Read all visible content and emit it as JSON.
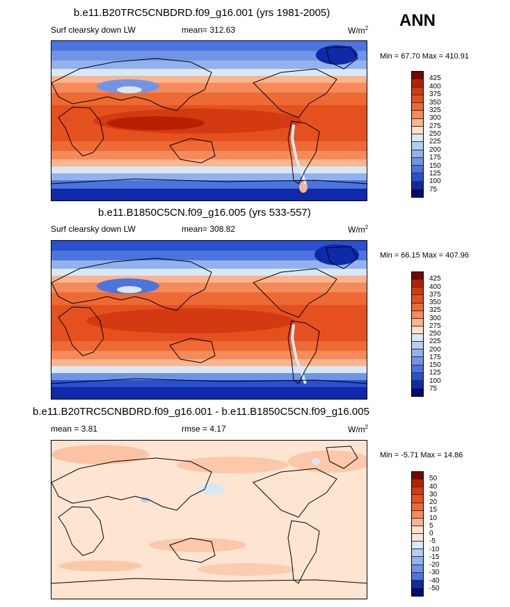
{
  "season": "ANN",
  "units_base": "W/m",
  "units_exp": "2",
  "panels": [
    {
      "title": "b.e11.B20TRC5CNBDRD.f09_g16.001 (yrs 1981-2005)",
      "variable": "Surf clearsky down LW",
      "mean_text": "mean= 312.63",
      "minmax_text": "Min =  67.70 Max = 410.91",
      "cbar_labels": [
        "425",
        "400",
        "375",
        "350",
        "325",
        "300",
        "275",
        "250",
        "225",
        "200",
        "175",
        "150",
        "125",
        "100",
        "75"
      ],
      "cbar_colors": [
        "#7a0000",
        "#b52000",
        "#d33a12",
        "#e5511e",
        "#ee6a35",
        "#f58a5a",
        "#fab48e",
        "#fde0c7",
        "#d8e8f8",
        "#b6cdf3",
        "#93b2ec",
        "#6f95e6",
        "#4b74df",
        "#2a50d0",
        "#0e2aa8",
        "#000c6e"
      ],
      "chart_data": {
        "type": "heatmap",
        "title": "b.e11.B20TRC5CNBDRD.f09_g16.001 (yrs 1981-2005)",
        "variable": "Surf clearsky down LW",
        "units": "W/m2",
        "mean": 312.63,
        "min": 67.7,
        "max": 410.91,
        "levels": [
          75,
          100,
          125,
          150,
          175,
          200,
          225,
          250,
          275,
          300,
          325,
          350,
          375,
          400,
          425
        ]
      }
    },
    {
      "title": "b.e11.B1850C5CN.f09_g16.005 (yrs 533-557)",
      "variable": "Surf clearsky down LW",
      "mean_text": "mean= 308.82",
      "minmax_text": "Min =  66.15 Max = 407.96",
      "cbar_labels": [
        "425",
        "400",
        "375",
        "350",
        "325",
        "300",
        "275",
        "250",
        "225",
        "200",
        "175",
        "150",
        "125",
        "100",
        "75"
      ],
      "cbar_colors": [
        "#7a0000",
        "#b52000",
        "#d33a12",
        "#e5511e",
        "#ee6a35",
        "#f58a5a",
        "#fab48e",
        "#fde0c7",
        "#d8e8f8",
        "#b6cdf3",
        "#93b2ec",
        "#6f95e6",
        "#4b74df",
        "#2a50d0",
        "#0e2aa8",
        "#000c6e"
      ],
      "chart_data": {
        "type": "heatmap",
        "title": "b.e11.B1850C5CN.f09_g16.005 (yrs 533-557)",
        "variable": "Surf clearsky down LW",
        "units": "W/m2",
        "mean": 308.82,
        "min": 66.15,
        "max": 407.96,
        "levels": [
          75,
          100,
          125,
          150,
          175,
          200,
          225,
          250,
          275,
          300,
          325,
          350,
          375,
          400,
          425
        ]
      }
    },
    {
      "title": "b.e11.B20TRC5CNBDRD.f09_g16.001 - b.e11.B1850C5CN.f09_g16.005",
      "mean_text": "mean =   3.81",
      "rmse_text": "rmse =   4.17",
      "minmax_text": "Min =  -5.71 Max =  14.86",
      "cbar_labels": [
        "50",
        "40",
        "30",
        "20",
        "15",
        "10",
        "5",
        "0",
        "-5",
        "-10",
        "-15",
        "-20",
        "-30",
        "-40",
        "-50"
      ],
      "cbar_colors": [
        "#7a0000",
        "#b52000",
        "#d33a12",
        "#e5511e",
        "#ee6a35",
        "#f58a5a",
        "#fab48e",
        "#fde5d2",
        "#fde5d2",
        "#d8e8f8",
        "#b6cdf3",
        "#93b2ec",
        "#6f95e6",
        "#4b74df",
        "#0e2aa8",
        "#000c6e"
      ],
      "chart_data": {
        "type": "heatmap",
        "title": "b.e11.B20TRC5CNBDRD.f09_g16.001 - b.e11.B1850C5CN.f09_g16.005",
        "units": "W/m2",
        "mean": 3.81,
        "rmse": 4.17,
        "min": -5.71,
        "max": 14.86,
        "levels": [
          -50,
          -40,
          -30,
          -20,
          -15,
          -10,
          -5,
          0,
          5,
          10,
          15,
          20,
          30,
          40,
          50
        ]
      }
    }
  ]
}
